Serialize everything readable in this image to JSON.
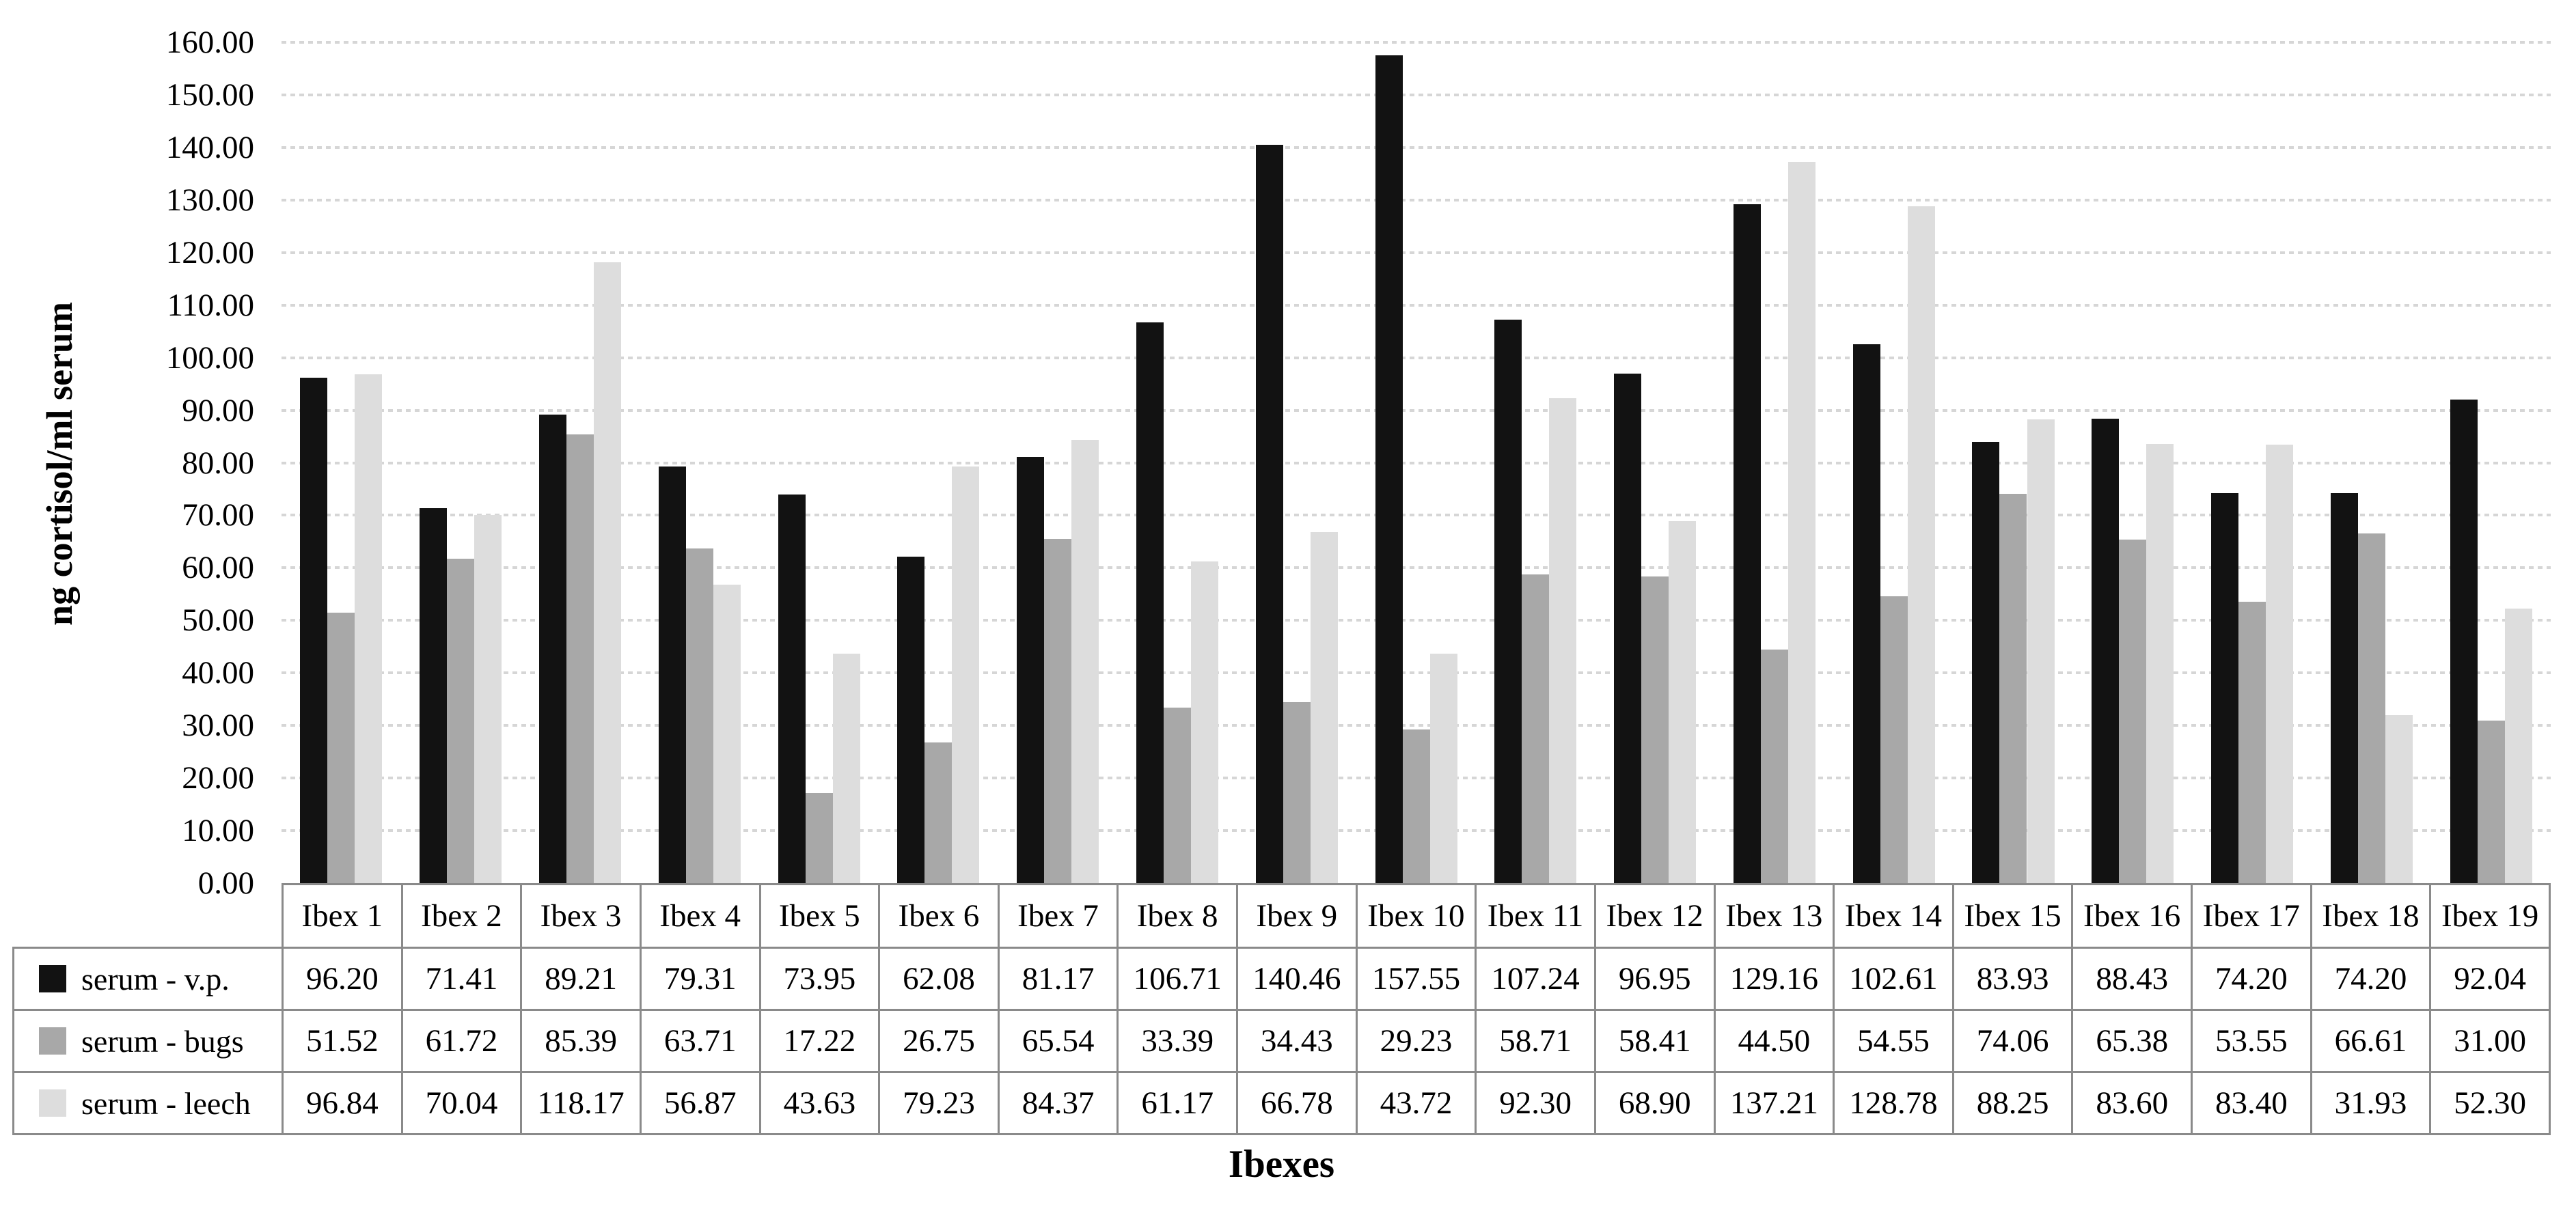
{
  "chart_data": {
    "type": "bar",
    "title": "",
    "xlabel": "Ibexes",
    "ylabel": "ng cortisol/ml serum",
    "ylim": [
      0,
      160
    ],
    "ytick_step": 10,
    "ytick_decimals": 2,
    "value_decimals": 2,
    "grid": "horizontal-dotted",
    "grid_color": "#d6d6d6",
    "table_border_color": "#8a8a8a",
    "background_color": "#ffffff",
    "legend_position": "table-left",
    "categories": [
      "Ibex 1",
      "Ibex 2",
      "Ibex 3",
      "Ibex 4",
      "Ibex 5",
      "Ibex 6",
      "Ibex 7",
      "Ibex 8",
      "Ibex 9",
      "Ibex 10",
      "Ibex 11",
      "Ibex 12",
      "Ibex 13",
      "Ibex 14",
      "Ibex 15",
      "Ibex 16",
      "Ibex 17",
      "Ibex 18",
      "Ibex 19"
    ],
    "series": [
      {
        "name": "serum - v.p.",
        "color": "#121212",
        "values": [
          96.2,
          71.41,
          89.21,
          79.31,
          73.95,
          62.08,
          81.17,
          106.71,
          140.46,
          157.55,
          107.24,
          96.95,
          129.16,
          102.61,
          83.93,
          88.43,
          74.2,
          74.2,
          92.04
        ]
      },
      {
        "name": "serum - bugs",
        "color": "#a8a8a8",
        "values": [
          51.52,
          61.72,
          85.39,
          63.71,
          17.22,
          26.75,
          65.54,
          33.39,
          34.43,
          29.23,
          58.71,
          58.41,
          44.5,
          54.55,
          74.06,
          65.38,
          53.55,
          66.61,
          31.0
        ]
      },
      {
        "name": "serum - leech",
        "color": "#dddddd",
        "values": [
          96.84,
          70.04,
          118.17,
          56.87,
          43.63,
          79.23,
          84.37,
          61.17,
          66.78,
          43.72,
          92.3,
          68.9,
          137.21,
          128.78,
          88.25,
          83.6,
          83.4,
          31.93,
          52.3
        ]
      }
    ]
  }
}
